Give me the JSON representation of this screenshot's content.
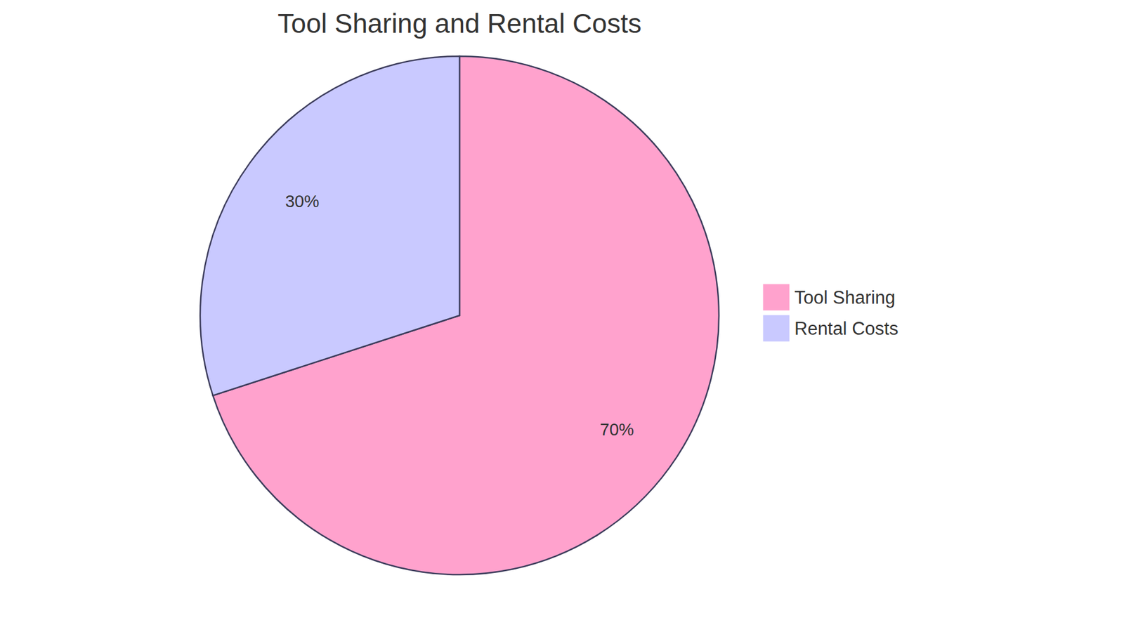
{
  "chart_data": {
    "type": "pie",
    "title": "Tool Sharing and Rental Costs",
    "categories": [
      "Tool Sharing",
      "Rental Costs"
    ],
    "values": [
      70,
      30
    ],
    "value_labels": [
      "70%",
      "30%"
    ],
    "colors": [
      "#ffa2cd",
      "#c9c9ff"
    ],
    "data_labels": true,
    "legend": "right"
  }
}
